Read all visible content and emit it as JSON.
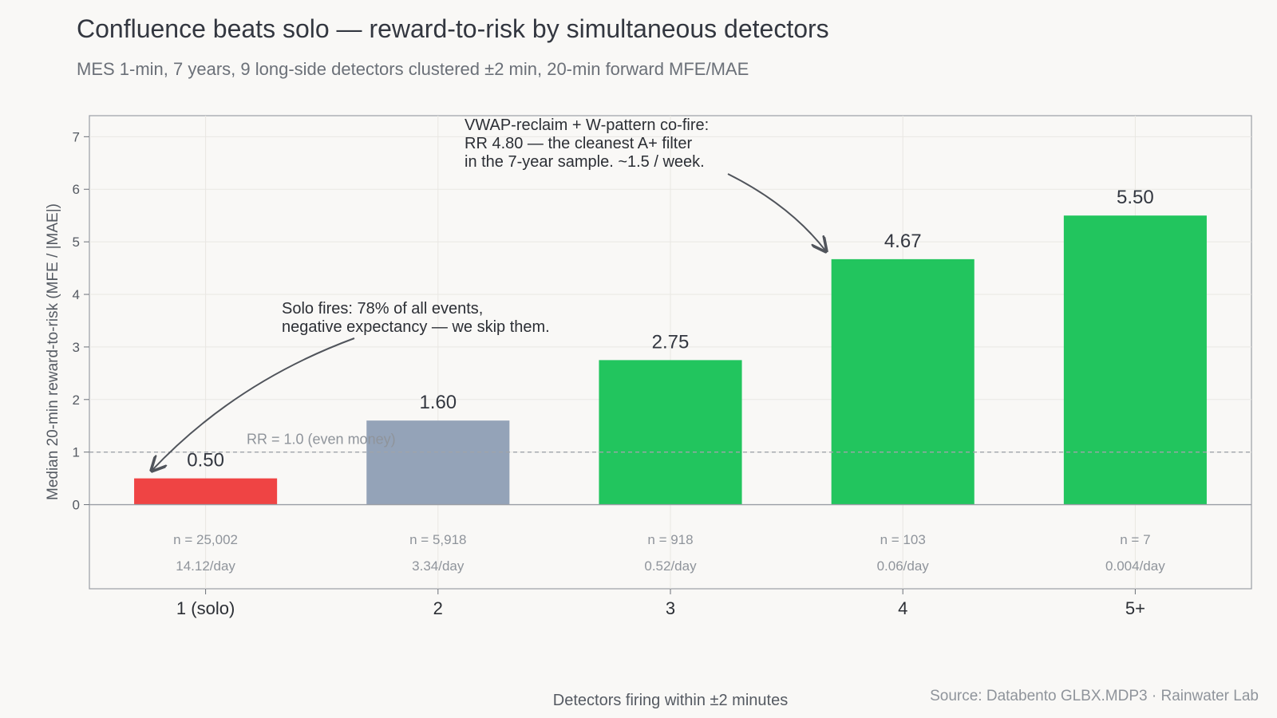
{
  "title": "Confluence beats solo — reward-to-risk by simultaneous detectors",
  "subtitle": "MES 1-min, 7 years, 9 long-side detectors clustered ±2 min, 20-min forward MFE/MAE",
  "source": "Source: Databento GLBX.MDP3 · Rainwater Lab",
  "chart_data": {
    "type": "bar",
    "title": "Confluence beats solo — reward-to-risk by simultaneous detectors",
    "xlabel": "Detectors firing within ±2 minutes",
    "ylabel": "Median 20-min reward-to-risk (MFE / |MAE|)",
    "ylim": [
      -1.6,
      7.4
    ],
    "yticks": [
      0,
      1,
      2,
      3,
      4,
      5,
      6,
      7
    ],
    "grid": true,
    "categories": [
      "1 (solo)",
      "2",
      "3",
      "4",
      "5+"
    ],
    "values": [
      0.5,
      1.6,
      2.75,
      4.67,
      5.5
    ],
    "value_labels": [
      "0.50",
      "1.60",
      "2.75",
      "4.67",
      "5.50"
    ],
    "counts": [
      "n = 25,002",
      "n = 5,918",
      "n = 918",
      "n = 103",
      "n = 7"
    ],
    "rates": [
      "14.12/day",
      "3.34/day",
      "0.52/day",
      "0.06/day",
      "0.004/day"
    ],
    "colors": [
      "#ef4444",
      "#94a3b8",
      "#22c55e",
      "#22c55e",
      "#22c55e"
    ],
    "reference_line": {
      "value": 1.0,
      "label": "RR = 1.0 (even money)"
    },
    "annotations": [
      {
        "target": "1 (solo)",
        "lines": [
          "Solo fires: 78% of all events,",
          "negative expectancy — we skip them."
        ]
      },
      {
        "target": "4",
        "lines": [
          "VWAP-reclaim + W-pattern co-fire:",
          "RR 4.80 — the cleanest A+ filter",
          "in the 7-year sample. ~1.5 / week."
        ]
      }
    ]
  }
}
